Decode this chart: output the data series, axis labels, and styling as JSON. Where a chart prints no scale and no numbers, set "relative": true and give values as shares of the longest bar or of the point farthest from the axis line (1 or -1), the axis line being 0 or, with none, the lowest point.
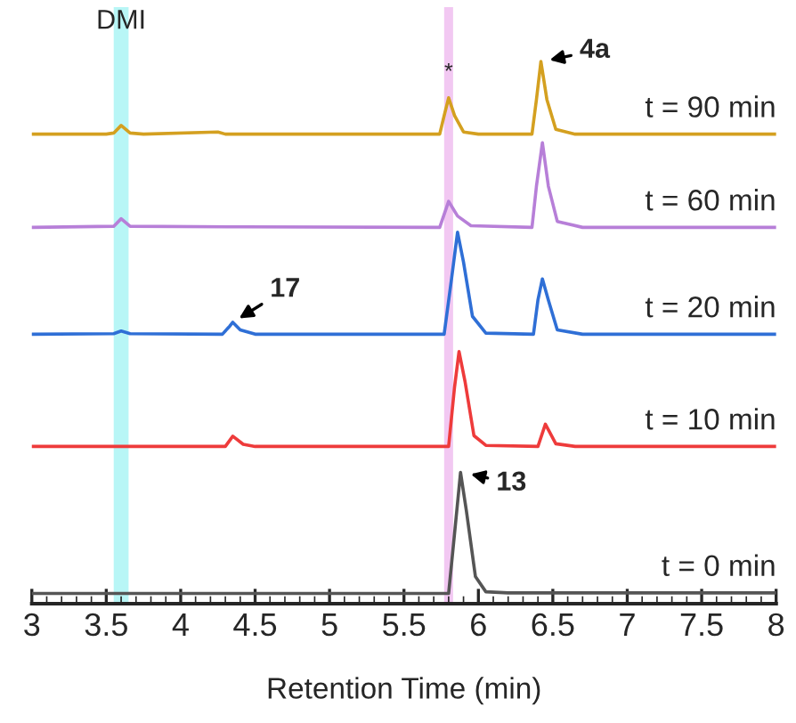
{
  "chart_data": {
    "type": "line",
    "relative": true,
    "xlabel": "Retention Time (min)",
    "xlim": [
      3,
      8
    ],
    "xticks": [
      3,
      3.5,
      4,
      4.5,
      5,
      5.5,
      6,
      6.5,
      7,
      7.5,
      8
    ],
    "grid": false,
    "legend": false,
    "bands": [
      {
        "axis": "x",
        "from": 3.55,
        "to": 3.65,
        "label": "DMI",
        "color": "#b8f6f6"
      },
      {
        "axis": "x",
        "from": 5.77,
        "to": 5.83,
        "label": "*",
        "color": "#f2c8f2"
      }
    ],
    "annotations": [
      {
        "text": "4a",
        "x": 6.43,
        "y": 1.0
      },
      {
        "text": "17",
        "x": 4.35,
        "y": 0.519
      },
      {
        "text": "13",
        "x": 5.9,
        "y": 0.242
      }
    ],
    "series": [
      {
        "name": "t = 90 min",
        "color": "#d4a020",
        "x": [
          3.0,
          3.5,
          3.55,
          3.6,
          3.66,
          3.75,
          4.25,
          4.3,
          5.0,
          5.74,
          5.77,
          5.8,
          5.84,
          5.9,
          6.0,
          6.36,
          6.39,
          6.42,
          6.46,
          6.52,
          6.65,
          8.0
        ],
        "values": [
          0.866,
          0.866,
          0.868,
          0.882,
          0.868,
          0.866,
          0.87,
          0.866,
          0.866,
          0.866,
          0.9,
          0.933,
          0.9,
          0.87,
          0.866,
          0.866,
          0.93,
          1.0,
          0.93,
          0.875,
          0.866,
          0.866
        ]
      },
      {
        "name": "t = 60 min",
        "color": "#b77fd8",
        "x": [
          3.0,
          3.55,
          3.6,
          3.66,
          4.4,
          5.74,
          5.8,
          5.86,
          5.95,
          6.36,
          6.39,
          6.43,
          6.47,
          6.53,
          6.7,
          8.0
        ],
        "values": [
          0.694,
          0.696,
          0.71,
          0.696,
          0.695,
          0.694,
          0.742,
          0.715,
          0.697,
          0.694,
          0.77,
          0.85,
          0.77,
          0.705,
          0.694,
          0.694
        ]
      },
      {
        "name": "t = 20 min",
        "color": "#2f6fd6",
        "x": [
          3.0,
          3.55,
          3.6,
          3.66,
          4.28,
          4.33,
          4.35,
          4.4,
          4.5,
          5.77,
          5.82,
          5.86,
          5.9,
          5.96,
          6.05,
          6.37,
          6.4,
          6.43,
          6.47,
          6.53,
          6.7,
          8.0
        ],
        "values": [
          0.497,
          0.498,
          0.503,
          0.498,
          0.497,
          0.512,
          0.519,
          0.505,
          0.497,
          0.497,
          0.6,
          0.685,
          0.63,
          0.53,
          0.499,
          0.497,
          0.56,
          0.599,
          0.56,
          0.505,
          0.497,
          0.497
        ]
      },
      {
        "name": "t = 10 min",
        "color": "#ee3b3b",
        "x": [
          3.0,
          4.3,
          4.35,
          4.42,
          4.5,
          5.8,
          5.84,
          5.87,
          5.91,
          5.97,
          6.05,
          6.4,
          6.45,
          6.52,
          6.65,
          8.0
        ],
        "values": [
          0.29,
          0.29,
          0.309,
          0.294,
          0.29,
          0.29,
          0.4,
          0.465,
          0.41,
          0.31,
          0.292,
          0.29,
          0.331,
          0.295,
          0.29,
          0.29
        ]
      },
      {
        "name": "t = 0 min",
        "color": "#555555",
        "x": [
          3.0,
          5.8,
          5.84,
          5.88,
          5.92,
          5.98,
          6.05,
          6.2,
          8.0
        ],
        "values": [
          0.019,
          0.019,
          0.13,
          0.242,
          0.17,
          0.05,
          0.022,
          0.02,
          0.02
        ]
      }
    ]
  }
}
